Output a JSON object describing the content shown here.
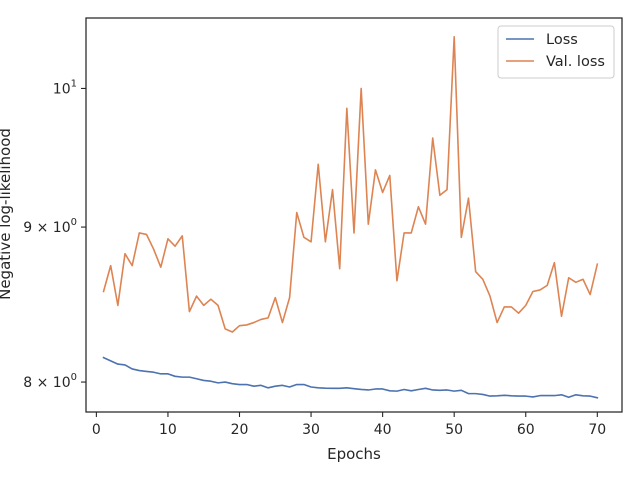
{
  "chart_data": {
    "type": "line",
    "title": "",
    "xlabel": "Epochs",
    "ylabel": "Negative log-likelihood",
    "yscale": "log",
    "xlim": [
      -1.45,
      73.45
    ],
    "ylim": [
      7.82,
      10.55
    ],
    "grid": false,
    "legend_position": "top-right",
    "x_ticks": [
      0,
      10,
      20,
      30,
      40,
      50,
      60,
      70
    ],
    "x_tick_labels": [
      "0",
      "10",
      "20",
      "30",
      "40",
      "50",
      "60",
      "70"
    ],
    "y_ticks": [
      {
        "value": 8,
        "mantissa": "8",
        "base": "10",
        "exp": "0"
      },
      {
        "value": 9,
        "mantissa": "9",
        "base": "10",
        "exp": "0"
      },
      {
        "value": 10,
        "mantissa": "",
        "base": "10",
        "exp": "1"
      }
    ],
    "x": [
      1,
      2,
      3,
      4,
      5,
      6,
      7,
      8,
      9,
      10,
      11,
      12,
      13,
      14,
      15,
      16,
      17,
      18,
      19,
      20,
      21,
      22,
      23,
      24,
      25,
      26,
      27,
      28,
      29,
      30,
      31,
      32,
      33,
      34,
      35,
      36,
      37,
      38,
      39,
      40,
      41,
      42,
      43,
      44,
      45,
      46,
      47,
      48,
      49,
      50,
      51,
      52,
      53,
      54,
      55,
      56,
      57,
      58,
      59,
      60,
      61,
      62,
      63,
      64,
      65,
      66,
      67,
      68,
      69,
      70
    ],
    "series": [
      {
        "name": "Loss",
        "color": "#4c72b0",
        "values": [
          8.15,
          8.13,
          8.11,
          8.105,
          8.08,
          8.07,
          8.065,
          8.06,
          8.05,
          8.05,
          8.035,
          8.03,
          8.03,
          8.02,
          8.01,
          8.005,
          7.995,
          8.0,
          7.99,
          7.985,
          7.985,
          7.975,
          7.98,
          7.965,
          7.975,
          7.98,
          7.97,
          7.985,
          7.985,
          7.97,
          7.965,
          7.963,
          7.962,
          7.962,
          7.965,
          7.96,
          7.955,
          7.952,
          7.958,
          7.958,
          7.947,
          7.945,
          7.955,
          7.947,
          7.955,
          7.962,
          7.952,
          7.95,
          7.952,
          7.945,
          7.95,
          7.93,
          7.93,
          7.925,
          7.915,
          7.917,
          7.92,
          7.917,
          7.915,
          7.915,
          7.91,
          7.918,
          7.918,
          7.918,
          7.923,
          7.908,
          7.923,
          7.917,
          7.915,
          7.905
        ]
      },
      {
        "name": "Val. loss",
        "color": "#dd8452",
        "values": [
          8.57,
          8.74,
          8.48,
          8.82,
          8.74,
          8.96,
          8.95,
          8.85,
          8.73,
          8.92,
          8.87,
          8.94,
          8.44,
          8.54,
          8.48,
          8.52,
          8.48,
          8.33,
          8.31,
          8.35,
          8.355,
          8.37,
          8.39,
          8.4,
          8.53,
          8.37,
          8.53,
          9.1,
          8.93,
          8.9,
          9.44,
          8.9,
          9.26,
          8.72,
          9.85,
          8.96,
          10.0,
          9.02,
          9.4,
          9.24,
          9.36,
          8.64,
          8.96,
          8.96,
          9.14,
          9.02,
          9.63,
          9.22,
          9.26,
          10.4,
          8.93,
          9.2,
          8.7,
          8.65,
          8.54,
          8.37,
          8.47,
          8.47,
          8.43,
          8.48,
          8.57,
          8.58,
          8.61,
          8.76,
          8.41,
          8.66,
          8.63,
          8.65,
          8.55,
          8.75
        ]
      }
    ]
  }
}
